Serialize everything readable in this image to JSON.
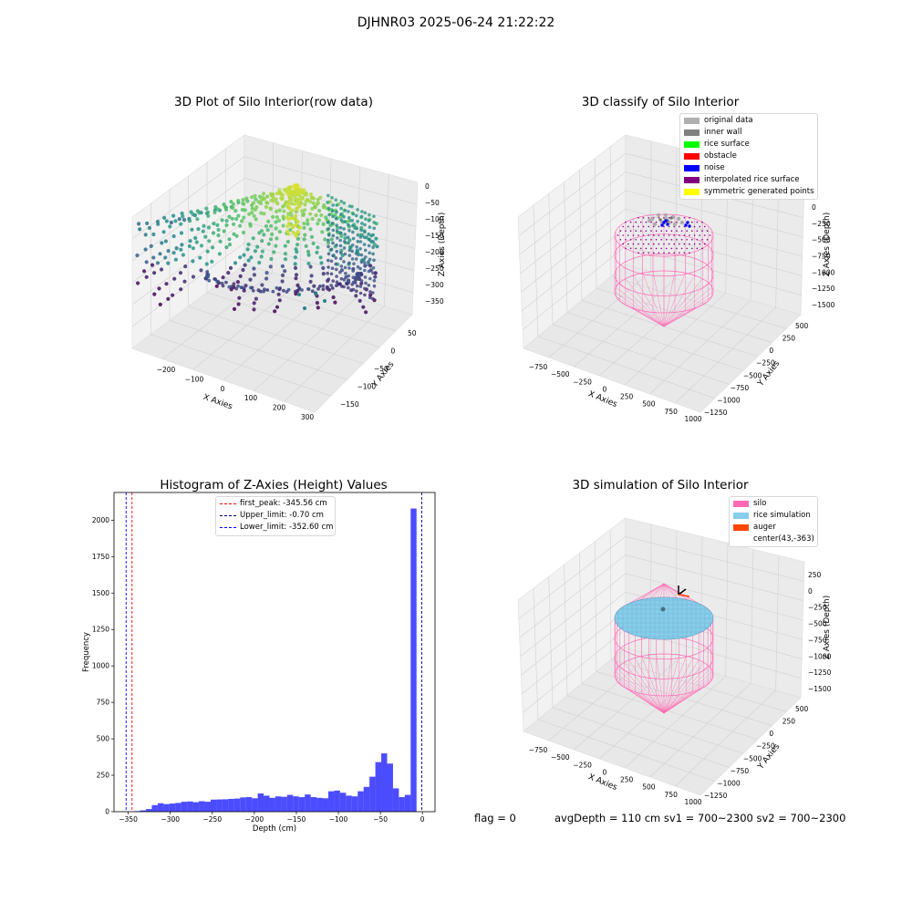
{
  "suptitle": "DJHNR03 2025-06-24 21:22:22",
  "chart_data": [
    {
      "type": "scatter",
      "title": "3D Plot of Silo Interior(row data)",
      "xlabel": "X Axies",
      "ylabel": "Y Axies",
      "zlabel": "Z Axies (Depth)",
      "x_ticks": [
        "−200",
        "−100",
        "0",
        "100",
        "200",
        "300"
      ],
      "y_ticks": [
        "50",
        "0",
        "−50",
        "−100",
        "−150"
      ],
      "z_ticks": [
        "0",
        "−50",
        "−100",
        "−150",
        "−200",
        "−250",
        "−300",
        "−350"
      ],
      "colormap": "viridis",
      "grid": true
    },
    {
      "type": "scatter",
      "title": "3D classify of Silo Interior",
      "xlabel": "X Axies",
      "ylabel": "Y Axies",
      "zlabel": "Z Axies (Depth)",
      "x_ticks": [
        "−750",
        "−500",
        "−250",
        "0",
        "250",
        "500",
        "750",
        "1000"
      ],
      "y_ticks": [
        "500",
        "250",
        "0",
        "−250",
        "−500",
        "−750",
        "−1000",
        "−1250"
      ],
      "z_ticks": [
        "0",
        "−250",
        "−500",
        "−750",
        "−1000",
        "−1250",
        "−1500"
      ],
      "legend": [
        {
          "label": "original data",
          "color": "#b0b0b0"
        },
        {
          "label": "inner wall",
          "color": "#808080"
        },
        {
          "label": "rice surface",
          "color": "#00ff00"
        },
        {
          "label": "obstacle",
          "color": "#ff0000"
        },
        {
          "label": "noise",
          "color": "#0000ff"
        },
        {
          "label": "interpolated rice surface",
          "color": "#800080"
        },
        {
          "label": "symmetric generated points",
          "color": "#ffff00"
        }
      ],
      "legend_position": "top-right",
      "grid": true
    },
    {
      "type": "bar",
      "title": "Histogram of Z-Axies (Height) Values",
      "xlabel": "Depth (cm)",
      "ylabel": "Frequency",
      "x_ticks": [
        -350,
        -300,
        -250,
        -200,
        -150,
        -100,
        -50,
        0
      ],
      "y_ticks": [
        0,
        250,
        500,
        750,
        1000,
        1250,
        1500,
        1750,
        2000
      ],
      "xlim": [
        -367,
        15
      ],
      "ylim": [
        0,
        2190
      ],
      "bin_width": 7,
      "bin_start": -357,
      "values": [
        2,
        1,
        4,
        9,
        18,
        45,
        58,
        52,
        56,
        60,
        68,
        70,
        65,
        72,
        68,
        83,
        84,
        85,
        88,
        90,
        98,
        100,
        92,
        125,
        110,
        95,
        105,
        102,
        115,
        105,
        100,
        118,
        100,
        95,
        92,
        140,
        145,
        130,
        110,
        105,
        140,
        170,
        240,
        340,
        400,
        330,
        160,
        100,
        115,
        2080
      ],
      "color": "#0000ff",
      "lines": [
        {
          "label": "first_peak: -345.56 cm",
          "x": -345.56,
          "color": "#ff0000"
        },
        {
          "label": "Upper_limit: -0.70 cm",
          "x": -0.7,
          "color": "#000080"
        },
        {
          "label": "Lower_limit: -352.60 cm",
          "x": -352.6,
          "color": "#0000ff"
        }
      ],
      "legend_position": "top-center"
    },
    {
      "type": "scatter",
      "title": "3D simulation of Silo Interior",
      "xlabel": "X Axies",
      "ylabel": "Y Axies",
      "zlabel": "Z Axies (Depth)",
      "x_ticks": [
        "−750",
        "−500",
        "−250",
        "0",
        "250",
        "500",
        "750",
        "1000"
      ],
      "y_ticks": [
        "500",
        "250",
        "0",
        "−250",
        "−500",
        "−750",
        "−1000",
        "−1250"
      ],
      "z_ticks": [
        "250",
        "0",
        "−250",
        "−500",
        "−750",
        "−1000",
        "−1250",
        "−1500"
      ],
      "legend": [
        {
          "label": "silo",
          "color": "#ff69b4"
        },
        {
          "label": "rice simulation",
          "color": "#87ceeb"
        },
        {
          "label": "auger",
          "color": "#ff4500"
        },
        {
          "label": "center(43,-363)",
          "color": ""
        }
      ],
      "legend_position": "top-right",
      "grid": true
    }
  ],
  "footer": {
    "flag": "flag = 0",
    "stats": "avgDepth = 110 cm  sv1 = 700~2300  sv2 = 700~2300"
  }
}
